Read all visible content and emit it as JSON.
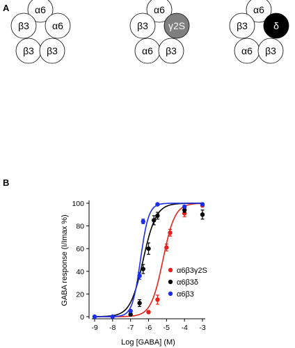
{
  "panels": {
    "a": "A",
    "b": "B"
  },
  "rosettes": [
    {
      "subunits": [
        {
          "label": "α6",
          "fill": "#ffffff",
          "text": "#000000"
        },
        {
          "label": "β3",
          "fill": "#ffffff",
          "text": "#000000"
        },
        {
          "label": "α6",
          "fill": "#ffffff",
          "text": "#000000"
        },
        {
          "label": "β3",
          "fill": "#ffffff",
          "text": "#000000"
        },
        {
          "label": "β3",
          "fill": "#ffffff",
          "text": "#000000"
        }
      ]
    },
    {
      "subunits": [
        {
          "label": "α6",
          "fill": "#ffffff",
          "text": "#000000"
        },
        {
          "label": "β3",
          "fill": "#ffffff",
          "text": "#000000"
        },
        {
          "label": "γ2S",
          "fill": "#7f7f7f",
          "text": "#ffffff"
        },
        {
          "label": "α6",
          "fill": "#ffffff",
          "text": "#000000"
        },
        {
          "label": "β3",
          "fill": "#ffffff",
          "text": "#000000"
        }
      ]
    },
    {
      "subunits": [
        {
          "label": "α6",
          "fill": "#ffffff",
          "text": "#000000"
        },
        {
          "label": "β3",
          "fill": "#ffffff",
          "text": "#000000"
        },
        {
          "label": "δ",
          "fill": "#000000",
          "text": "#ffffff"
        },
        {
          "label": "α6",
          "fill": "#ffffff",
          "text": "#000000"
        },
        {
          "label": "β3",
          "fill": "#ffffff",
          "text": "#000000"
        }
      ]
    }
  ],
  "chart_data": {
    "type": "scatter",
    "xlabel": "Log [GABA] (M)",
    "ylabel": "GABA response (I/Imax %)",
    "xlim": [
      -9,
      -3
    ],
    "ylim": [
      0,
      100
    ],
    "xticks": [
      -9,
      -8,
      -7,
      -6,
      -5,
      -4,
      -3
    ],
    "yticks": [
      0,
      20,
      40,
      60,
      80,
      100
    ],
    "legend_position": "right",
    "grid": false,
    "series": [
      {
        "name": "α6β3γ2S",
        "color": "#e8211c",
        "fit": {
          "logEC50": -5.2,
          "hill": 1.3
        },
        "points": [
          {
            "x": -6.0,
            "y": 4,
            "err": 1
          },
          {
            "x": -5.5,
            "y": 15,
            "err": 4
          },
          {
            "x": -5.0,
            "y": 61,
            "err": 3
          },
          {
            "x": -4.8,
            "y": 74,
            "err": 3
          },
          {
            "x": -4.0,
            "y": 91,
            "err": 3
          },
          {
            "x": -3.0,
            "y": 98,
            "err": 1
          }
        ]
      },
      {
        "name": "α6β3δ",
        "color": "#000000",
        "fit": {
          "logEC50": -6.3,
          "hill": 1.2
        },
        "points": [
          {
            "x": -7.0,
            "y": 2,
            "err": 1
          },
          {
            "x": -6.5,
            "y": 12,
            "err": 3
          },
          {
            "x": -6.3,
            "y": 42,
            "err": 4
          },
          {
            "x": -6.0,
            "y": 60,
            "err": 5
          },
          {
            "x": -5.7,
            "y": 85,
            "err": 4
          },
          {
            "x": -5.5,
            "y": 89,
            "err": 3
          },
          {
            "x": -4.0,
            "y": 94,
            "err": 2
          },
          {
            "x": -3.0,
            "y": 90,
            "err": 4
          }
        ]
      },
      {
        "name": "α6β3",
        "color": "#1a2ee8",
        "fit": {
          "logEC50": -6.45,
          "hill": 1.9
        },
        "points": [
          {
            "x": -9.0,
            "y": 0,
            "err": 0
          },
          {
            "x": -8.0,
            "y": 0,
            "err": 0
          },
          {
            "x": -7.0,
            "y": 5,
            "err": 1
          },
          {
            "x": -6.5,
            "y": 36,
            "err": 3
          },
          {
            "x": -6.3,
            "y": 84,
            "err": 2
          },
          {
            "x": -5.5,
            "y": 99,
            "err": 1
          },
          {
            "x": -4.0,
            "y": 97,
            "err": 1
          },
          {
            "x": -3.0,
            "y": 99,
            "err": 1
          }
        ]
      }
    ]
  }
}
